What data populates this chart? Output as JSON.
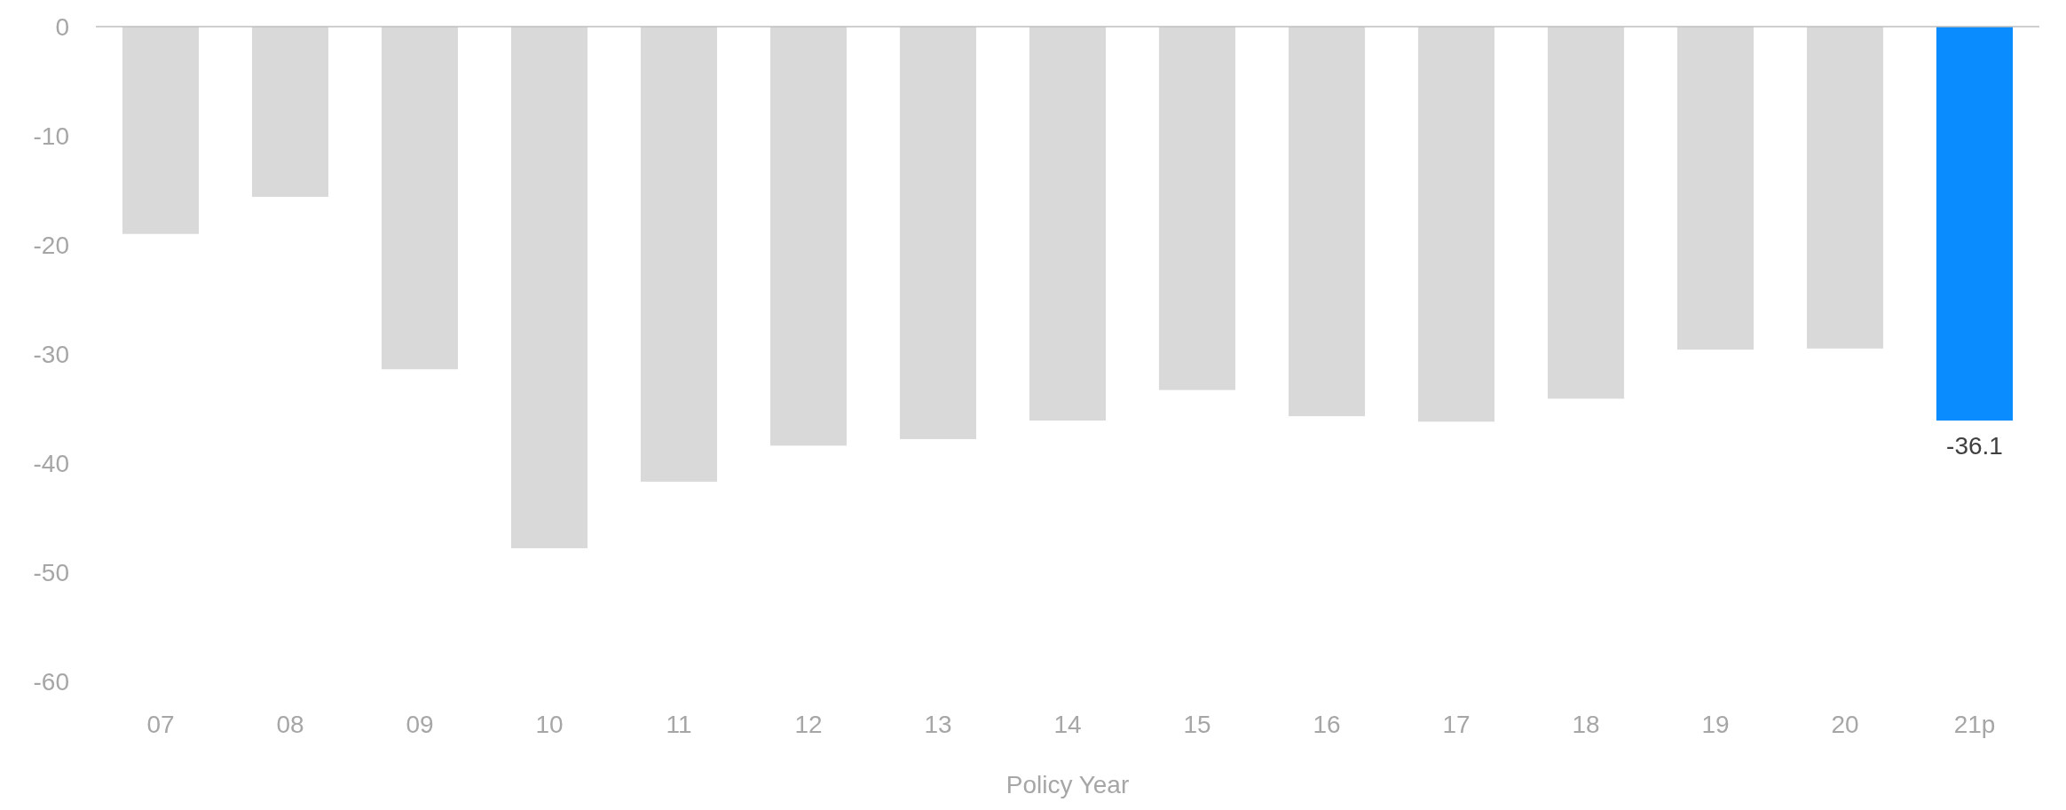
{
  "chart_data": {
    "type": "bar",
    "xlabel": "Policy Year",
    "categories": [
      "07",
      "08",
      "09",
      "10",
      "11",
      "12",
      "13",
      "14",
      "15",
      "16",
      "17",
      "18",
      "19",
      "20",
      "21p"
    ],
    "values": [
      -19.0,
      -15.6,
      -31.4,
      -47.8,
      -41.7,
      -38.4,
      -37.8,
      -36.1,
      -33.3,
      -35.7,
      -36.2,
      -34.1,
      -29.6,
      -29.5,
      -36.1
    ],
    "colors": [
      "#d9d9d9",
      "#d9d9d9",
      "#d9d9d9",
      "#d9d9d9",
      "#d9d9d9",
      "#d9d9d9",
      "#d9d9d9",
      "#d9d9d9",
      "#d9d9d9",
      "#d9d9d9",
      "#d9d9d9",
      "#d9d9d9",
      "#d9d9d9",
      "#d9d9d9",
      "#0a8cff"
    ],
    "value_labels": [
      null,
      null,
      null,
      null,
      null,
      null,
      null,
      null,
      null,
      null,
      null,
      null,
      null,
      null,
      "-36.1"
    ],
    "ylim": [
      -60,
      0
    ],
    "yticks": [
      0,
      -10,
      -20,
      -30,
      -40,
      -50,
      -60
    ],
    "grid": false
  }
}
